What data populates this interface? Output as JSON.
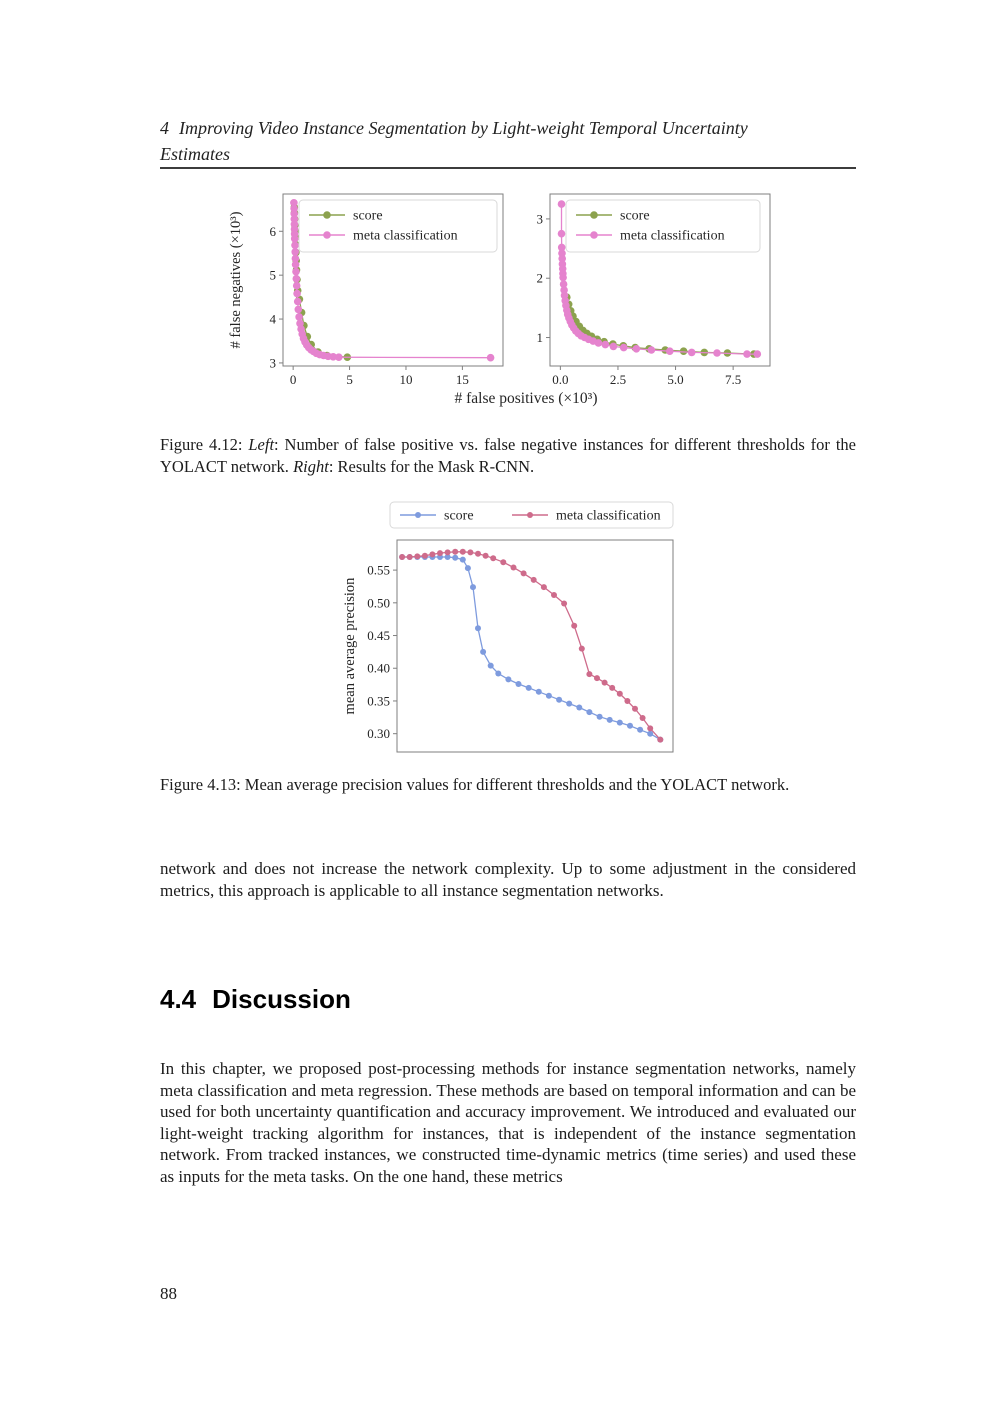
{
  "header": {
    "number": "4",
    "title": "Improving Video Instance Segmentation by Light-weight Temporal Uncertainty Estimates"
  },
  "section_heading": {
    "number": "4.4",
    "title": "Discussion"
  },
  "page_number": "88",
  "captions": {
    "fig12": [
      {
        "t": "Figure 4.12: ",
        "i": false
      },
      {
        "t": "Left",
        "i": true
      },
      {
        "t": ": Number of false positive vs. false negative instances for different thresholds for the YOLACT network. ",
        "i": false
      },
      {
        "t": "Right",
        "i": true
      },
      {
        "t": ": Results for the Mask R-CNN.",
        "i": false
      }
    ],
    "fig13": [
      {
        "t": "Figure 4.13: Mean average precision values for different thresholds and the YOLACT network.",
        "i": false
      }
    ]
  },
  "paragraphs": {
    "p1": "network and does not increase the network complexity. Up to some adjustment in the considered metrics, this approach is applicable to all instance segmentation networks.",
    "p2": "In this chapter, we proposed post-processing methods for instance segmentation networks, namely meta classification and meta regression. These methods are based on temporal information and can be used for both uncertainty quantification and accuracy improvement. We introduced and evaluated our light-weight tracking algorithm for instances, that is independent of the instance segmentation network. From tracked instances, we constructed time-dynamic metrics (time series) and used these as inputs for the meta tasks. On the one hand, these metrics"
  },
  "colors": {
    "score_olive": "#8CA24E",
    "meta_pink": "#E583CE",
    "score_blue": "#7E9BDE",
    "meta_rose": "#CE6B8B",
    "spine": "#7f7f7f"
  },
  "chart_data": [
    {
      "id": "fig12-left",
      "type": "line",
      "title": "",
      "xlabel": "# false positives (×10³)",
      "ylabel": "# false negatives (×10³)",
      "xlim": [
        -0.9,
        18.6
      ],
      "ylim": [
        2.93,
        6.85
      ],
      "xticks": [
        {
          "v": 0,
          "label": "0"
        },
        {
          "v": 5,
          "label": "5"
        },
        {
          "v": 10,
          "label": "10"
        },
        {
          "v": 15,
          "label": "15"
        }
      ],
      "yticks": [
        {
          "v": 3,
          "label": "3"
        },
        {
          "v": 4,
          "label": "4"
        },
        {
          "v": 5,
          "label": "5"
        },
        {
          "v": 6,
          "label": "6"
        }
      ],
      "legend_position": "upper right box",
      "grid": false,
      "series": [
        {
          "name": "score",
          "color": "#8CA24E",
          "x": [
            0.1,
            0.11,
            0.13,
            0.15,
            0.17,
            0.19,
            0.21,
            0.24,
            0.27,
            0.3,
            0.34,
            0.4,
            0.55,
            0.75,
            0.95,
            1.25,
            1.6,
            2.2,
            3.0,
            4.8
          ],
          "y": [
            6.55,
            6.42,
            6.28,
            6.14,
            6.0,
            5.86,
            5.7,
            5.52,
            5.33,
            5.12,
            4.9,
            4.65,
            4.45,
            4.15,
            3.85,
            3.6,
            3.42,
            3.25,
            3.17,
            3.13
          ]
        },
        {
          "name": "meta classification",
          "color": "#E583CE",
          "x": [
            0.07,
            0.08,
            0.09,
            0.1,
            0.11,
            0.12,
            0.13,
            0.14,
            0.16,
            0.18,
            0.2,
            0.22,
            0.25,
            0.28,
            0.31,
            0.35,
            0.4,
            0.46,
            0.53,
            0.61,
            0.7,
            0.8,
            0.92,
            1.05,
            1.2,
            1.38,
            1.58,
            1.8,
            2.05,
            2.35,
            2.7,
            3.1,
            3.55,
            4.05,
            17.5
          ],
          "y": [
            6.65,
            6.52,
            6.4,
            6.28,
            6.16,
            6.05,
            5.94,
            5.83,
            5.68,
            5.53,
            5.38,
            5.24,
            5.08,
            4.92,
            4.76,
            4.58,
            4.4,
            4.22,
            4.05,
            3.9,
            3.77,
            3.66,
            3.56,
            3.48,
            3.41,
            3.35,
            3.3,
            3.26,
            3.22,
            3.19,
            3.17,
            3.15,
            3.14,
            3.13,
            3.12
          ]
        }
      ]
    },
    {
      "id": "fig12-right",
      "type": "line",
      "title": "",
      "xlabel": "",
      "ylabel": "",
      "xlim": [
        -0.45,
        9.1
      ],
      "ylim": [
        0.52,
        3.42
      ],
      "xticks": [
        {
          "v": 0,
          "label": "0.0"
        },
        {
          "v": 2.5,
          "label": "2.5"
        },
        {
          "v": 5,
          "label": "5.0"
        },
        {
          "v": 7.5,
          "label": "7.5"
        }
      ],
      "yticks": [
        {
          "v": 1,
          "label": "1"
        },
        {
          "v": 2,
          "label": "2"
        },
        {
          "v": 3,
          "label": "3"
        }
      ],
      "legend_position": "upper right box",
      "grid": false,
      "series": [
        {
          "name": "score",
          "color": "#8CA24E",
          "x": [
            0.28,
            0.36,
            0.45,
            0.55,
            0.68,
            0.82,
            0.98,
            1.15,
            1.35,
            1.6,
            1.9,
            2.28,
            2.73,
            3.25,
            3.85,
            4.55,
            5.35,
            6.25,
            7.25,
            8.4
          ],
          "y": [
            1.68,
            1.56,
            1.45,
            1.36,
            1.27,
            1.19,
            1.12,
            1.07,
            1.02,
            0.97,
            0.93,
            0.89,
            0.86,
            0.83,
            0.81,
            0.79,
            0.77,
            0.75,
            0.74,
            0.72
          ]
        },
        {
          "name": "meta classification",
          "color": "#E583CE",
          "x": [
            0.05,
            0.05,
            0.06,
            0.07,
            0.08,
            0.09,
            0.1,
            0.11,
            0.12,
            0.14,
            0.16,
            0.18,
            0.21,
            0.24,
            0.28,
            0.32,
            0.37,
            0.43,
            0.5,
            0.58,
            0.67,
            0.78,
            0.9,
            1.05,
            1.22,
            1.42,
            1.65,
            1.95,
            2.3,
            2.75,
            3.3,
            3.95,
            4.75,
            5.7,
            6.8,
            8.1,
            8.55
          ],
          "y": [
            3.25,
            2.75,
            2.52,
            2.42,
            2.33,
            2.24,
            2.16,
            2.08,
            2.01,
            1.9,
            1.8,
            1.71,
            1.62,
            1.54,
            1.46,
            1.39,
            1.33,
            1.27,
            1.21,
            1.16,
            1.11,
            1.07,
            1.03,
            1.0,
            0.97,
            0.94,
            0.91,
            0.88,
            0.85,
            0.83,
            0.81,
            0.79,
            0.77,
            0.75,
            0.74,
            0.72,
            0.72
          ]
        }
      ]
    },
    {
      "id": "fig13",
      "type": "line",
      "title": "",
      "xlabel": "",
      "ylabel": "mean average precision",
      "xlim": [
        0,
        1.09
      ],
      "ylim": [
        0.272,
        0.596
      ],
      "xticks": [],
      "yticks": [
        {
          "v": 0.3,
          "label": "0.30"
        },
        {
          "v": 0.35,
          "label": "0.35"
        },
        {
          "v": 0.4,
          "label": "0.40"
        },
        {
          "v": 0.45,
          "label": "0.45"
        },
        {
          "v": 0.5,
          "label": "0.50"
        },
        {
          "v": 0.55,
          "label": "0.55"
        }
      ],
      "legend_position": "horizontal box above plot",
      "grid": false,
      "series": [
        {
          "name": "score",
          "color": "#7E9BDE",
          "x": [
            0.02,
            0.05,
            0.08,
            0.11,
            0.14,
            0.17,
            0.2,
            0.23,
            0.26,
            0.28,
            0.3,
            0.32,
            0.34,
            0.37,
            0.4,
            0.44,
            0.48,
            0.52,
            0.56,
            0.6,
            0.64,
            0.68,
            0.72,
            0.76,
            0.8,
            0.84,
            0.88,
            0.92,
            0.96,
            1.0,
            1.04
          ],
          "y": [
            0.57,
            0.57,
            0.57,
            0.57,
            0.57,
            0.57,
            0.57,
            0.569,
            0.566,
            0.553,
            0.524,
            0.461,
            0.425,
            0.404,
            0.392,
            0.383,
            0.376,
            0.37,
            0.364,
            0.358,
            0.352,
            0.346,
            0.34,
            0.333,
            0.326,
            0.321,
            0.317,
            0.312,
            0.306,
            0.3,
            0.291
          ]
        },
        {
          "name": "meta classification",
          "color": "#CE6B8B",
          "x": [
            0.02,
            0.05,
            0.08,
            0.11,
            0.14,
            0.17,
            0.2,
            0.23,
            0.26,
            0.29,
            0.32,
            0.35,
            0.38,
            0.42,
            0.46,
            0.5,
            0.54,
            0.58,
            0.62,
            0.66,
            0.7,
            0.73,
            0.76,
            0.79,
            0.82,
            0.85,
            0.88,
            0.91,
            0.94,
            0.97,
            1.0,
            1.04
          ],
          "y": [
            0.57,
            0.57,
            0.571,
            0.572,
            0.574,
            0.576,
            0.577,
            0.578,
            0.578,
            0.577,
            0.575,
            0.572,
            0.568,
            0.562,
            0.554,
            0.545,
            0.535,
            0.524,
            0.512,
            0.499,
            0.465,
            0.43,
            0.391,
            0.385,
            0.378,
            0.37,
            0.361,
            0.35,
            0.338,
            0.324,
            0.308,
            0.291
          ]
        }
      ]
    }
  ]
}
